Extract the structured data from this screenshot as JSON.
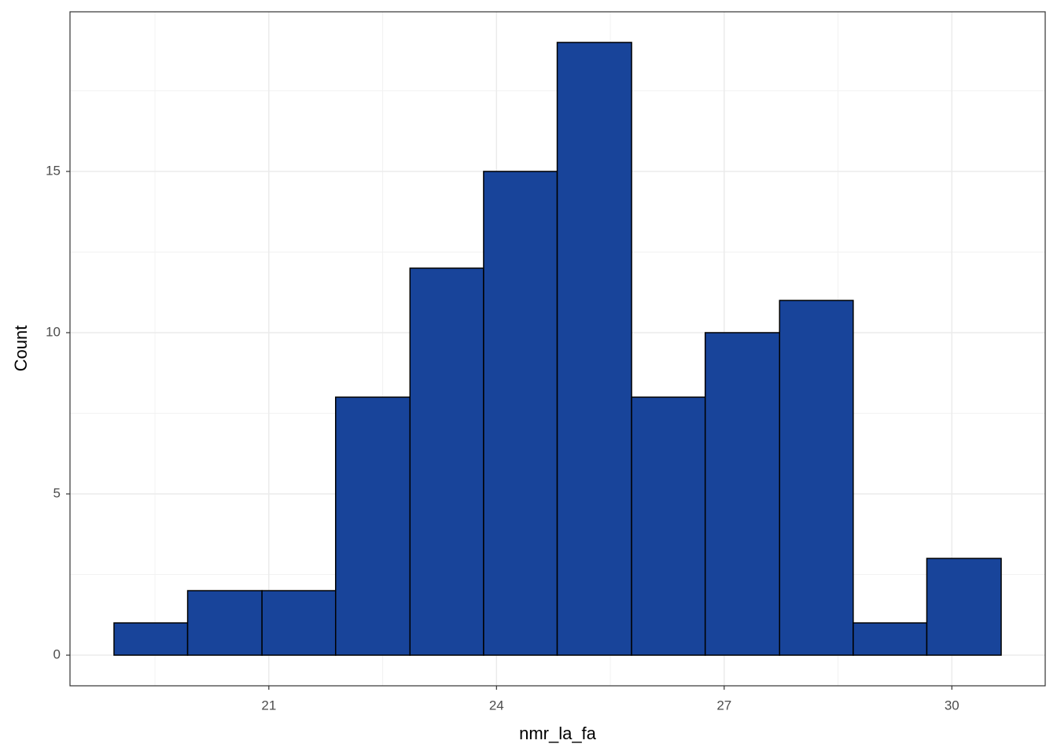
{
  "chart_data": {
    "type": "histogram",
    "x_label": "nmr_la_fa",
    "y_label": "Count",
    "bins": [
      18.96,
      19.93,
      20.91,
      21.88,
      22.86,
      23.83,
      24.8,
      25.78,
      26.75,
      27.73,
      28.7,
      29.67,
      30.65
    ],
    "values": [
      1,
      2,
      2,
      8,
      12,
      15,
      19,
      8,
      10,
      11,
      1,
      3
    ],
    "color": "#18449a",
    "edge_color": "#000000",
    "xlim": [
      18.38,
      31.23
    ],
    "xticks": [
      21,
      24,
      27,
      30
    ],
    "ylim": [
      -0.95,
      19.95
    ],
    "yticks": [
      0,
      5,
      10,
      15
    ],
    "grid": true
  }
}
